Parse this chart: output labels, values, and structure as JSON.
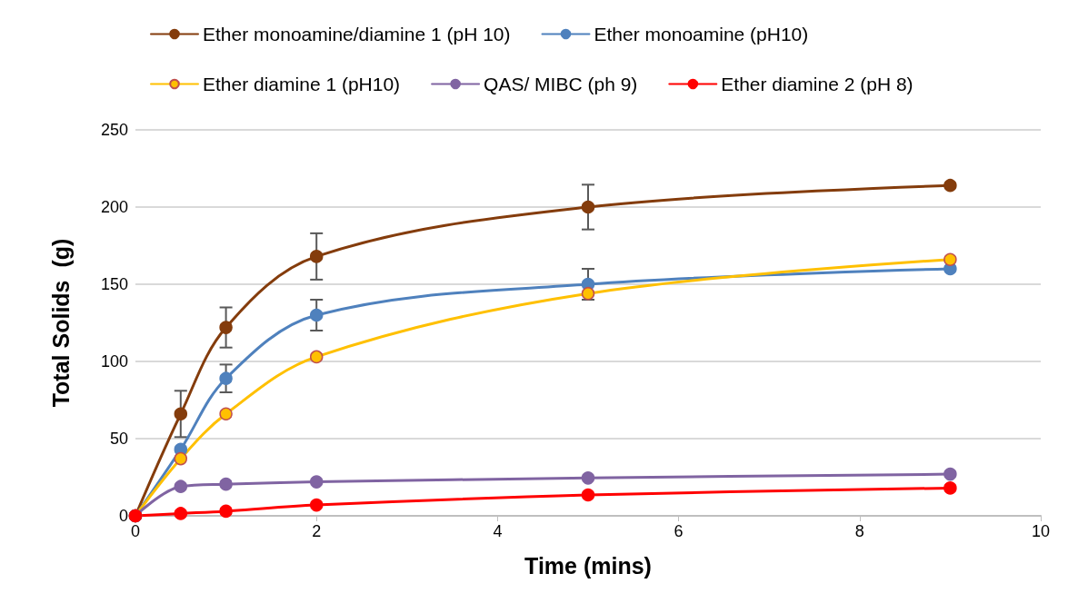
{
  "chart_data": {
    "type": "line",
    "xlabel": "Time (mins)",
    "ylabel": "Total Solids  (g)",
    "x": [
      0,
      0.5,
      1,
      2,
      5,
      9
    ],
    "series": [
      {
        "name": "Ether monoamine/diamine 1 (pH 10)",
        "color": "#843c0c",
        "values": [
          0,
          66,
          122,
          168,
          200,
          214
        ],
        "errors": [
          null,
          15,
          13,
          15,
          14.5,
          null
        ]
      },
      {
        "name": "Ether monoamine (pH10)",
        "color": "#4f81bd",
        "values": [
          0,
          43,
          89,
          130,
          150,
          160
        ],
        "errors": [
          null,
          null,
          9,
          10,
          10,
          null
        ]
      },
      {
        "name": "Ether diamine 1 (pH10)",
        "color": "#ffc000",
        "values": [
          0,
          37,
          66,
          103,
          144,
          166
        ]
      },
      {
        "name": "QAS/ MIBC (ph 9)",
        "color": "#8064a2",
        "values": [
          0,
          19,
          20.5,
          22,
          24.5,
          27
        ]
      },
      {
        "name": "Ether diamine 2 (pH 8)",
        "color": "#ff0000",
        "values": [
          0,
          1.5,
          3,
          7,
          13.5,
          18
        ]
      }
    ],
    "xlim": [
      0,
      10
    ],
    "xticks": [
      0,
      2,
      4,
      6,
      8,
      10
    ],
    "ylim": [
      0,
      250
    ],
    "yticks": [
      0,
      50,
      100,
      150,
      200,
      250
    ],
    "grid": "y",
    "legend": "top",
    "marker": "circle",
    "line_style": "solid"
  }
}
